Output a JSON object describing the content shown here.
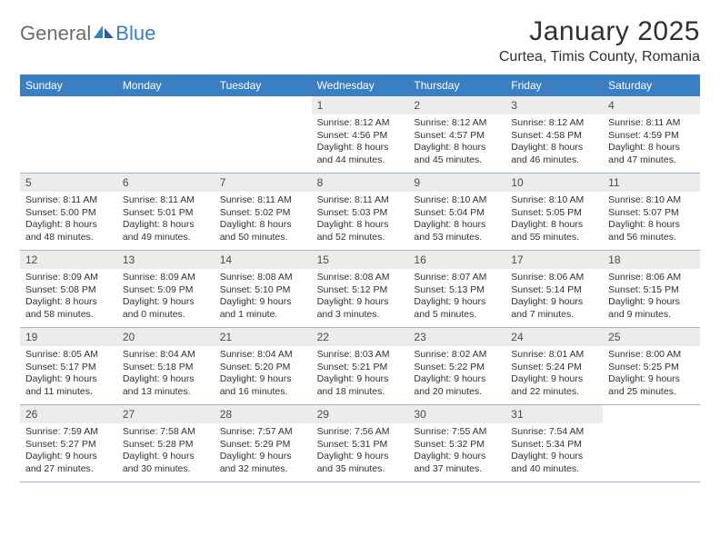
{
  "brand": {
    "text1": "General",
    "text2": "Blue"
  },
  "header": {
    "title": "January 2025",
    "location": "Curtea, Timis County, Romania"
  },
  "colors": {
    "header_bg": "#3a7fc2",
    "daynum_bg": "#ececec",
    "week_border": "#9bb6d0",
    "text": "#303030",
    "logo_gray": "#6b6b6b"
  },
  "weekdays": [
    "Sunday",
    "Monday",
    "Tuesday",
    "Wednesday",
    "Thursday",
    "Friday",
    "Saturday"
  ],
  "weeks": [
    [
      null,
      null,
      null,
      {
        "n": "1",
        "sr": "8:12 AM",
        "ss": "4:56 PM",
        "dl": "8 hours and 44 minutes."
      },
      {
        "n": "2",
        "sr": "8:12 AM",
        "ss": "4:57 PM",
        "dl": "8 hours and 45 minutes."
      },
      {
        "n": "3",
        "sr": "8:12 AM",
        "ss": "4:58 PM",
        "dl": "8 hours and 46 minutes."
      },
      {
        "n": "4",
        "sr": "8:11 AM",
        "ss": "4:59 PM",
        "dl": "8 hours and 47 minutes."
      }
    ],
    [
      {
        "n": "5",
        "sr": "8:11 AM",
        "ss": "5:00 PM",
        "dl": "8 hours and 48 minutes."
      },
      {
        "n": "6",
        "sr": "8:11 AM",
        "ss": "5:01 PM",
        "dl": "8 hours and 49 minutes."
      },
      {
        "n": "7",
        "sr": "8:11 AM",
        "ss": "5:02 PM",
        "dl": "8 hours and 50 minutes."
      },
      {
        "n": "8",
        "sr": "8:11 AM",
        "ss": "5:03 PM",
        "dl": "8 hours and 52 minutes."
      },
      {
        "n": "9",
        "sr": "8:10 AM",
        "ss": "5:04 PM",
        "dl": "8 hours and 53 minutes."
      },
      {
        "n": "10",
        "sr": "8:10 AM",
        "ss": "5:05 PM",
        "dl": "8 hours and 55 minutes."
      },
      {
        "n": "11",
        "sr": "8:10 AM",
        "ss": "5:07 PM",
        "dl": "8 hours and 56 minutes."
      }
    ],
    [
      {
        "n": "12",
        "sr": "8:09 AM",
        "ss": "5:08 PM",
        "dl": "8 hours and 58 minutes."
      },
      {
        "n": "13",
        "sr": "8:09 AM",
        "ss": "5:09 PM",
        "dl": "9 hours and 0 minutes."
      },
      {
        "n": "14",
        "sr": "8:08 AM",
        "ss": "5:10 PM",
        "dl": "9 hours and 1 minute."
      },
      {
        "n": "15",
        "sr": "8:08 AM",
        "ss": "5:12 PM",
        "dl": "9 hours and 3 minutes."
      },
      {
        "n": "16",
        "sr": "8:07 AM",
        "ss": "5:13 PM",
        "dl": "9 hours and 5 minutes."
      },
      {
        "n": "17",
        "sr": "8:06 AM",
        "ss": "5:14 PM",
        "dl": "9 hours and 7 minutes."
      },
      {
        "n": "18",
        "sr": "8:06 AM",
        "ss": "5:15 PM",
        "dl": "9 hours and 9 minutes."
      }
    ],
    [
      {
        "n": "19",
        "sr": "8:05 AM",
        "ss": "5:17 PM",
        "dl": "9 hours and 11 minutes."
      },
      {
        "n": "20",
        "sr": "8:04 AM",
        "ss": "5:18 PM",
        "dl": "9 hours and 13 minutes."
      },
      {
        "n": "21",
        "sr": "8:04 AM",
        "ss": "5:20 PM",
        "dl": "9 hours and 16 minutes."
      },
      {
        "n": "22",
        "sr": "8:03 AM",
        "ss": "5:21 PM",
        "dl": "9 hours and 18 minutes."
      },
      {
        "n": "23",
        "sr": "8:02 AM",
        "ss": "5:22 PM",
        "dl": "9 hours and 20 minutes."
      },
      {
        "n": "24",
        "sr": "8:01 AM",
        "ss": "5:24 PM",
        "dl": "9 hours and 22 minutes."
      },
      {
        "n": "25",
        "sr": "8:00 AM",
        "ss": "5:25 PM",
        "dl": "9 hours and 25 minutes."
      }
    ],
    [
      {
        "n": "26",
        "sr": "7:59 AM",
        "ss": "5:27 PM",
        "dl": "9 hours and 27 minutes."
      },
      {
        "n": "27",
        "sr": "7:58 AM",
        "ss": "5:28 PM",
        "dl": "9 hours and 30 minutes."
      },
      {
        "n": "28",
        "sr": "7:57 AM",
        "ss": "5:29 PM",
        "dl": "9 hours and 32 minutes."
      },
      {
        "n": "29",
        "sr": "7:56 AM",
        "ss": "5:31 PM",
        "dl": "9 hours and 35 minutes."
      },
      {
        "n": "30",
        "sr": "7:55 AM",
        "ss": "5:32 PM",
        "dl": "9 hours and 37 minutes."
      },
      {
        "n": "31",
        "sr": "7:54 AM",
        "ss": "5:34 PM",
        "dl": "9 hours and 40 minutes."
      },
      null
    ]
  ],
  "labels": {
    "sunrise": "Sunrise:",
    "sunset": "Sunset:",
    "daylight": "Daylight:"
  }
}
